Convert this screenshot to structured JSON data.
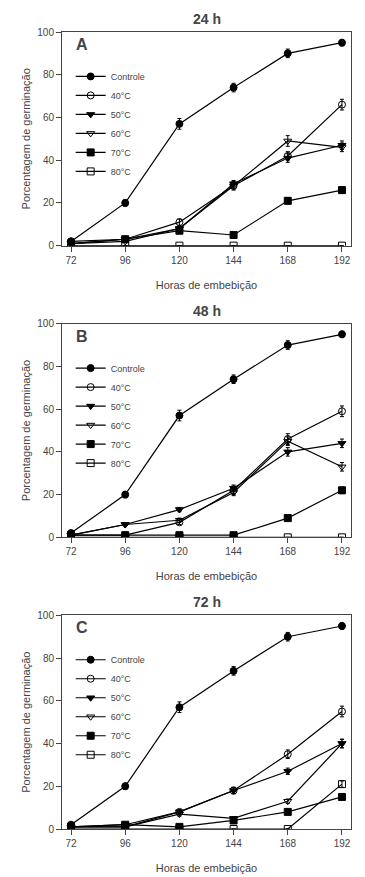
{
  "chart_data": [
    {
      "type": "line",
      "title": "24 h",
      "annotations": [
        "A"
      ],
      "xlabel": "Horas de embebição",
      "ylabel": "Porcentagem de germinação",
      "x": [
        72,
        96,
        120,
        144,
        168,
        192
      ],
      "xlim": [
        68,
        196
      ],
      "ylim": [
        0,
        100
      ],
      "xticks": [
        72,
        96,
        120,
        144,
        168,
        192
      ],
      "yticks": [
        0,
        20,
        40,
        60,
        80,
        100
      ],
      "grid": false,
      "legend": "upper left",
      "series": [
        {
          "name": "Controle",
          "color": "black",
          "marker": "circle",
          "values": [
            2,
            20,
            57,
            74,
            90,
            95
          ],
          "err": [
            0.5,
            1.5,
            2.5,
            2.0,
            2.0,
            1.5
          ]
        },
        {
          "name": "40°C",
          "color": "black",
          "marker": "circle-open",
          "values": [
            2,
            3,
            11,
            28,
            42,
            66
          ],
          "err": [
            0.5,
            0.5,
            1.5,
            2.0,
            2.0,
            2.5
          ]
        },
        {
          "name": "50°C",
          "color": "black",
          "marker": "triangle-down",
          "values": [
            1,
            3,
            8,
            29,
            41,
            47
          ],
          "err": [
            0.5,
            0.5,
            1.0,
            1.5,
            2.0,
            2.0
          ]
        },
        {
          "name": "60°C",
          "color": "black",
          "marker": "triangle-down-open",
          "values": [
            1,
            2,
            8,
            28,
            49,
            46
          ],
          "err": [
            0.5,
            0.5,
            1.0,
            1.5,
            2.5,
            2.0
          ]
        },
        {
          "name": "70°C",
          "color": "black",
          "marker": "square",
          "values": [
            1,
            3,
            7,
            5,
            21,
            26
          ],
          "err": [
            0.5,
            0.5,
            1.0,
            1.0,
            1.5,
            1.5
          ]
        },
        {
          "name": "80°C",
          "color": "black",
          "marker": "square-open",
          "values": [
            0,
            0,
            0,
            0,
            0,
            0
          ],
          "err": [
            0.0,
            0.0,
            0.0,
            0.0,
            0.0,
            0.0
          ]
        }
      ]
    },
    {
      "type": "line",
      "title": "48 h",
      "annotations": [
        "B"
      ],
      "xlabel": "Horas de embebição",
      "ylabel": "Porcentagem de germinação",
      "x": [
        72,
        96,
        120,
        144,
        168,
        192
      ],
      "xlim": [
        68,
        196
      ],
      "ylim": [
        0,
        100
      ],
      "xticks": [
        72,
        96,
        120,
        144,
        168,
        192
      ],
      "yticks": [
        0,
        20,
        40,
        60,
        80,
        100
      ],
      "grid": false,
      "legend": "upper left",
      "series": [
        {
          "name": "Controle",
          "color": "black",
          "marker": "circle",
          "values": [
            2,
            20,
            57,
            74,
            90,
            95
          ],
          "err": [
            0.5,
            1.5,
            2.5,
            2.0,
            2.0,
            1.5
          ]
        },
        {
          "name": "40°C",
          "color": "black",
          "marker": "circle-open",
          "values": [
            1,
            1,
            7,
            22,
            46,
            59
          ],
          "err": [
            0.5,
            0.5,
            1.0,
            2.0,
            2.5,
            2.5
          ]
        },
        {
          "name": "50°C",
          "color": "black",
          "marker": "triangle-down",
          "values": [
            1,
            6,
            13,
            23,
            40,
            44
          ],
          "err": [
            0.5,
            0.5,
            1.0,
            1.5,
            2.0,
            2.0
          ]
        },
        {
          "name": "60°C",
          "color": "black",
          "marker": "triangle-down-open",
          "values": [
            1,
            6,
            8,
            21,
            45,
            33
          ],
          "err": [
            0.5,
            0.5,
            1.0,
            1.5,
            2.0,
            2.0
          ]
        },
        {
          "name": "70°C",
          "color": "black",
          "marker": "square",
          "values": [
            1,
            1,
            1,
            1,
            9,
            22
          ],
          "err": [
            0.5,
            0.5,
            0.5,
            0.5,
            1.0,
            1.5
          ]
        },
        {
          "name": "80°C",
          "color": "black",
          "marker": "square-open",
          "values": [
            0,
            0,
            0,
            0,
            0,
            0
          ],
          "err": [
            0.0,
            0.0,
            0.0,
            0.0,
            0.0,
            0.0
          ]
        }
      ]
    },
    {
      "type": "line",
      "title": "72 h",
      "annotations": [
        "C"
      ],
      "xlabel": "Horas de embebição",
      "ylabel": "Porcentagem de germinação",
      "x": [
        72,
        96,
        120,
        144,
        168,
        192
      ],
      "xlim": [
        68,
        196
      ],
      "ylim": [
        0,
        100
      ],
      "xticks": [
        72,
        96,
        120,
        144,
        168,
        192
      ],
      "yticks": [
        0,
        20,
        40,
        60,
        80,
        100
      ],
      "grid": false,
      "legend": "upper left",
      "series": [
        {
          "name": "Controle",
          "color": "black",
          "marker": "circle",
          "values": [
            2,
            20,
            57,
            74,
            90,
            95
          ],
          "err": [
            0.5,
            1.5,
            2.5,
            2.0,
            2.0,
            1.5
          ]
        },
        {
          "name": "40°C",
          "color": "black",
          "marker": "circle-open",
          "values": [
            1,
            1,
            8,
            18,
            35,
            55
          ],
          "err": [
            0.5,
            0.5,
            1.0,
            1.5,
            2.0,
            2.5
          ]
        },
        {
          "name": "50°C",
          "color": "black",
          "marker": "triangle-down",
          "values": [
            1,
            2,
            8,
            18,
            27,
            40
          ],
          "err": [
            0.5,
            0.5,
            1.0,
            1.5,
            1.5,
            2.0
          ]
        },
        {
          "name": "60°C",
          "color": "black",
          "marker": "triangle-down-open",
          "values": [
            1,
            1,
            7,
            5,
            13,
            40
          ],
          "err": [
            0.5,
            0.5,
            1.0,
            0.5,
            1.0,
            2.0
          ]
        },
        {
          "name": "70°C",
          "color": "black",
          "marker": "square",
          "values": [
            1,
            2,
            1,
            4,
            8,
            15
          ],
          "err": [
            0.5,
            0.5,
            0.5,
            0.5,
            1.0,
            1.0
          ]
        },
        {
          "name": "80°C",
          "color": "black",
          "marker": "square-open",
          "values": [
            0,
            0,
            0,
            0,
            0,
            21
          ],
          "err": [
            0.0,
            0.0,
            0.0,
            0.0,
            0.0,
            1.5
          ]
        }
      ]
    }
  ]
}
